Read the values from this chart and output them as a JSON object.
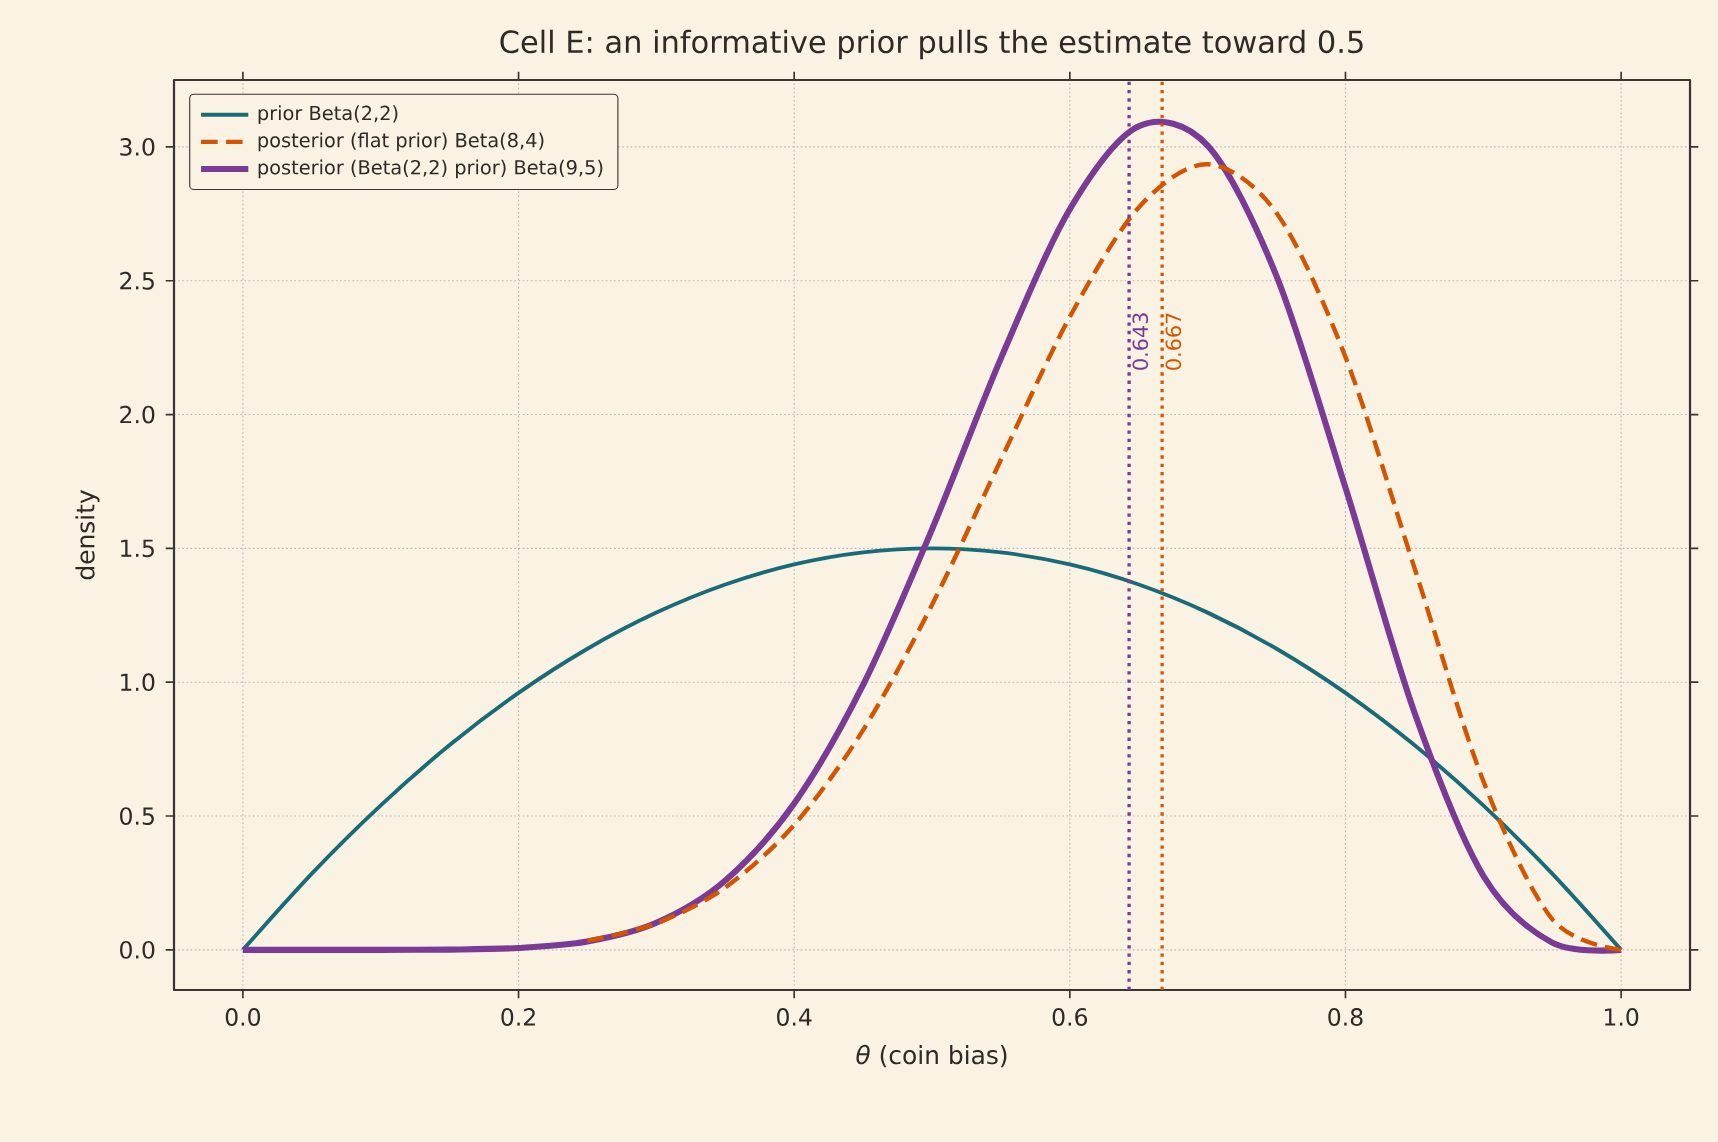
{
  "chart_data": {
    "type": "line",
    "title": "Cell E: an informative prior pulls the estimate toward 0.5",
    "xlabel": "*θ*  (coin bias)",
    "ylabel": "density",
    "x": [
      0,
      0.05,
      0.1,
      0.15,
      0.2,
      0.25,
      0.3,
      0.35,
      0.4,
      0.45,
      0.5,
      0.55,
      0.6,
      0.65,
      0.7,
      0.75,
      0.8,
      0.85,
      0.9,
      0.95,
      1
    ],
    "series": [
      {
        "name": "prior  Beta(2,2)",
        "color": "#1a6b7a",
        "line_style": "solid",
        "values": [
          0,
          0.285,
          0.54,
          0.765,
          0.96,
          1.125,
          1.26,
          1.365,
          1.44,
          1.485,
          1.5,
          1.485,
          1.44,
          1.365,
          1.26,
          1.125,
          0.96,
          0.765,
          0.54,
          0.285,
          0
        ]
      },
      {
        "name": "posterior (flat prior) Beta(8,4)",
        "color": "#d45500",
        "line_style": "dashed",
        "values": [
          null,
          null,
          null,
          null,
          null,
          0.034,
          0.099,
          0.233,
          0.467,
          0.821,
          1.289,
          1.831,
          2.365,
          2.774,
          2.935,
          2.753,
          2.215,
          1.428,
          0.631,
          0.115,
          0
        ]
      },
      {
        "name": "posterior (Beta(2,2) prior) Beta(9,5)",
        "color": "#7b3a96",
        "line_style": "solid",
        "values": [
          0,
          0,
          0,
          0.001,
          0.007,
          0.031,
          0.101,
          0.259,
          0.547,
          0.99,
          1.571,
          2.21,
          2.767,
          3.077,
          3.005,
          2.517,
          1.727,
          0.888,
          0.277,
          0.027,
          0
        ]
      }
    ],
    "ref_lines": [
      {
        "axis": "x",
        "value": 0.643,
        "label": "0.643",
        "color": "#7b3a96",
        "line_style": "dotted"
      },
      {
        "axis": "x",
        "value": 0.667,
        "label": "0.667",
        "color": "#d45500",
        "line_style": "dotted"
      }
    ],
    "xlim": [
      -0.05,
      1.05
    ],
    "ylim": [
      -0.15,
      3.25
    ],
    "xticks": [
      {
        "value": 0,
        "label": "0.0"
      },
      {
        "value": 0.2,
        "label": "0.2"
      },
      {
        "value": 0.4,
        "label": "0.4"
      },
      {
        "value": 0.6,
        "label": "0.6"
      },
      {
        "value": 0.8,
        "label": "0.8"
      },
      {
        "value": 1,
        "label": "1.0"
      }
    ],
    "yticks": [
      {
        "value": 0,
        "label": "0.0"
      },
      {
        "value": 0.5,
        "label": "0.5"
      },
      {
        "value": 1,
        "label": "1.0"
      },
      {
        "value": 1.5,
        "label": "1.5"
      },
      {
        "value": 2,
        "label": "2.0"
      },
      {
        "value": 2.5,
        "label": "2.5"
      },
      {
        "value": 3,
        "label": "3.0"
      }
    ],
    "grid": true,
    "legend": "top left"
  }
}
